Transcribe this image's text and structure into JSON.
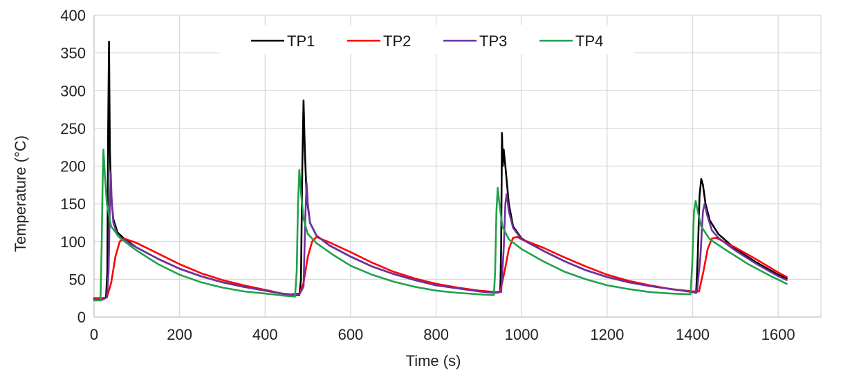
{
  "chart_data": {
    "type": "line",
    "title": "",
    "xlabel": "Time (s)",
    "ylabel": "Temperature (°C)",
    "xlim": [
      0,
      1700
    ],
    "ylim": [
      0,
      400
    ],
    "xticks": [
      0,
      200,
      400,
      600,
      800,
      1000,
      1200,
      1400,
      1600
    ],
    "yticks": [
      0,
      50,
      100,
      150,
      200,
      250,
      300,
      350,
      400
    ],
    "grid": true,
    "legend": "top-center",
    "series": [
      {
        "name": "TP1",
        "color": "#000000",
        "points": [
          [
            0,
            24
          ],
          [
            20,
            24
          ],
          [
            28,
            26
          ],
          [
            31,
            60
          ],
          [
            33,
            250
          ],
          [
            35,
            365
          ],
          [
            37,
            220
          ],
          [
            40,
            160
          ],
          [
            45,
            130
          ],
          [
            55,
            112
          ],
          [
            70,
            104
          ],
          [
            100,
            92
          ],
          [
            150,
            77
          ],
          [
            200,
            64
          ],
          [
            250,
            54
          ],
          [
            300,
            46
          ],
          [
            350,
            40
          ],
          [
            400,
            35
          ],
          [
            440,
            31
          ],
          [
            460,
            29
          ],
          [
            480,
            29
          ],
          [
            484,
            50
          ],
          [
            487,
            200
          ],
          [
            490,
            287
          ],
          [
            493,
            220
          ],
          [
            497,
            160
          ],
          [
            505,
            125
          ],
          [
            520,
            108
          ],
          [
            550,
            95
          ],
          [
            600,
            80
          ],
          [
            650,
            67
          ],
          [
            700,
            57
          ],
          [
            750,
            49
          ],
          [
            800,
            42
          ],
          [
            850,
            38
          ],
          [
            900,
            34
          ],
          [
            940,
            32
          ],
          [
            950,
            33
          ],
          [
            952,
            90
          ],
          [
            954,
            244
          ],
          [
            956,
            200
          ],
          [
            958,
            222
          ],
          [
            962,
            200
          ],
          [
            970,
            150
          ],
          [
            980,
            120
          ],
          [
            1000,
            104
          ],
          [
            1050,
            88
          ],
          [
            1100,
            74
          ],
          [
            1150,
            62
          ],
          [
            1200,
            53
          ],
          [
            1250,
            46
          ],
          [
            1300,
            41
          ],
          [
            1350,
            37
          ],
          [
            1400,
            33
          ],
          [
            1408,
            32
          ],
          [
            1412,
            80
          ],
          [
            1416,
            160
          ],
          [
            1420,
            183
          ],
          [
            1424,
            175
          ],
          [
            1430,
            150
          ],
          [
            1440,
            128
          ],
          [
            1460,
            110
          ],
          [
            1500,
            90
          ],
          [
            1550,
            72
          ],
          [
            1600,
            56
          ],
          [
            1620,
            51
          ]
        ]
      },
      {
        "name": "TP2",
        "color": "#ff0000",
        "points": [
          [
            0,
            25
          ],
          [
            20,
            25
          ],
          [
            30,
            26
          ],
          [
            40,
            45
          ],
          [
            50,
            80
          ],
          [
            60,
            100
          ],
          [
            70,
            104
          ],
          [
            100,
            98
          ],
          [
            150,
            84
          ],
          [
            200,
            70
          ],
          [
            250,
            58
          ],
          [
            300,
            49
          ],
          [
            350,
            42
          ],
          [
            400,
            36
          ],
          [
            440,
            31
          ],
          [
            460,
            30
          ],
          [
            480,
            31
          ],
          [
            490,
            45
          ],
          [
            500,
            80
          ],
          [
            510,
            100
          ],
          [
            520,
            106
          ],
          [
            550,
            99
          ],
          [
            600,
            86
          ],
          [
            650,
            72
          ],
          [
            700,
            60
          ],
          [
            750,
            51
          ],
          [
            800,
            44
          ],
          [
            850,
            39
          ],
          [
            900,
            35
          ],
          [
            940,
            33
          ],
          [
            950,
            34
          ],
          [
            960,
            60
          ],
          [
            970,
            90
          ],
          [
            980,
            105
          ],
          [
            990,
            106
          ],
          [
            1000,
            103
          ],
          [
            1050,
            92
          ],
          [
            1100,
            79
          ],
          [
            1150,
            67
          ],
          [
            1200,
            56
          ],
          [
            1250,
            48
          ],
          [
            1300,
            42
          ],
          [
            1350,
            37
          ],
          [
            1400,
            34
          ],
          [
            1415,
            34
          ],
          [
            1425,
            60
          ],
          [
            1435,
            90
          ],
          [
            1445,
            104
          ],
          [
            1455,
            105
          ],
          [
            1500,
            92
          ],
          [
            1550,
            76
          ],
          [
            1600,
            59
          ],
          [
            1620,
            53
          ]
        ]
      },
      {
        "name": "TP3",
        "color": "#7030a0",
        "points": [
          [
            0,
            23
          ],
          [
            20,
            23
          ],
          [
            30,
            26
          ],
          [
            34,
            60
          ],
          [
            37,
            150
          ],
          [
            39,
            192
          ],
          [
            41,
            160
          ],
          [
            45,
            125
          ],
          [
            55,
            108
          ],
          [
            70,
            102
          ],
          [
            100,
            92
          ],
          [
            150,
            77
          ],
          [
            200,
            64
          ],
          [
            250,
            54
          ],
          [
            300,
            46
          ],
          [
            350,
            40
          ],
          [
            400,
            35
          ],
          [
            440,
            31
          ],
          [
            460,
            29
          ],
          [
            480,
            30
          ],
          [
            490,
            40
          ],
          [
            494,
            130
          ],
          [
            497,
            178
          ],
          [
            500,
            150
          ],
          [
            505,
            125
          ],
          [
            520,
            108
          ],
          [
            550,
            95
          ],
          [
            600,
            80
          ],
          [
            650,
            67
          ],
          [
            700,
            57
          ],
          [
            750,
            49
          ],
          [
            800,
            42
          ],
          [
            850,
            38
          ],
          [
            900,
            34
          ],
          [
            940,
            32
          ],
          [
            952,
            33
          ],
          [
            958,
            90
          ],
          [
            962,
            150
          ],
          [
            965,
            163
          ],
          [
            970,
            140
          ],
          [
            980,
            118
          ],
          [
            1000,
            103
          ],
          [
            1050,
            88
          ],
          [
            1100,
            74
          ],
          [
            1150,
            62
          ],
          [
            1200,
            53
          ],
          [
            1250,
            46
          ],
          [
            1300,
            41
          ],
          [
            1350,
            37
          ],
          [
            1400,
            33
          ],
          [
            1410,
            33
          ],
          [
            1418,
            80
          ],
          [
            1424,
            140
          ],
          [
            1428,
            150
          ],
          [
            1434,
            135
          ],
          [
            1445,
            115
          ],
          [
            1460,
            105
          ],
          [
            1500,
            88
          ],
          [
            1550,
            70
          ],
          [
            1600,
            54
          ],
          [
            1620,
            49
          ]
        ]
      },
      {
        "name": "TP4",
        "color": "#21a14a",
        "points": [
          [
            0,
            22
          ],
          [
            15,
            22
          ],
          [
            18,
            100
          ],
          [
            20,
            180
          ],
          [
            22,
            222
          ],
          [
            25,
            190
          ],
          [
            30,
            150
          ],
          [
            40,
            120
          ],
          [
            60,
            105
          ],
          [
            100,
            88
          ],
          [
            150,
            70
          ],
          [
            200,
            56
          ],
          [
            250,
            46
          ],
          [
            300,
            39
          ],
          [
            350,
            34
          ],
          [
            400,
            31
          ],
          [
            450,
            28
          ],
          [
            470,
            27
          ],
          [
            474,
            60
          ],
          [
            477,
            150
          ],
          [
            480,
            195
          ],
          [
            484,
            165
          ],
          [
            490,
            130
          ],
          [
            500,
            110
          ],
          [
            520,
            98
          ],
          [
            560,
            82
          ],
          [
            600,
            68
          ],
          [
            650,
            56
          ],
          [
            700,
            47
          ],
          [
            750,
            40
          ],
          [
            800,
            35
          ],
          [
            850,
            32
          ],
          [
            900,
            30
          ],
          [
            935,
            29
          ],
          [
            938,
            60
          ],
          [
            941,
            140
          ],
          [
            944,
            171
          ],
          [
            948,
            150
          ],
          [
            955,
            120
          ],
          [
            970,
            103
          ],
          [
            1000,
            90
          ],
          [
            1050,
            74
          ],
          [
            1100,
            60
          ],
          [
            1150,
            50
          ],
          [
            1200,
            42
          ],
          [
            1250,
            37
          ],
          [
            1300,
            33
          ],
          [
            1350,
            31
          ],
          [
            1395,
            30
          ],
          [
            1399,
            70
          ],
          [
            1403,
            140
          ],
          [
            1407,
            154
          ],
          [
            1412,
            140
          ],
          [
            1420,
            120
          ],
          [
            1440,
            103
          ],
          [
            1480,
            88
          ],
          [
            1530,
            70
          ],
          [
            1580,
            55
          ],
          [
            1620,
            44
          ]
        ]
      }
    ]
  }
}
